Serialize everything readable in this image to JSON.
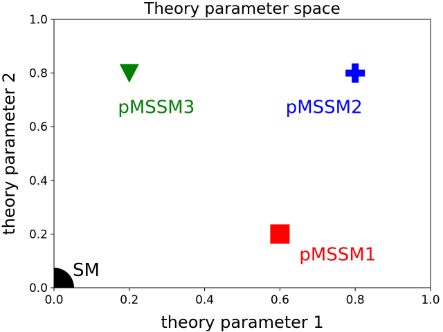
{
  "chart_data": {
    "type": "scatter",
    "title": "Theory parameter space",
    "xlabel": "theory parameter 1",
    "ylabel": "theory parameter 2",
    "xlim": [
      0.0,
      1.0
    ],
    "ylim": [
      0.0,
      1.0
    ],
    "xticks": [
      "0.0",
      "0.2",
      "0.4",
      "0.6",
      "0.8",
      "1.0"
    ],
    "yticks": [
      "0.0",
      "0.2",
      "0.4",
      "0.6",
      "0.8",
      "1.0"
    ],
    "grid": false,
    "points": [
      {
        "label": "SM",
        "x": 0.0,
        "y": 0.0,
        "marker": "circle",
        "color": "#000000"
      },
      {
        "label": "pMSSM1",
        "x": 0.6,
        "y": 0.2,
        "marker": "square",
        "color": "#ff0000"
      },
      {
        "label": "pMSSM2",
        "x": 0.8,
        "y": 0.8,
        "marker": "plus",
        "color": "#0000ff"
      },
      {
        "label": "pMSSM3",
        "x": 0.2,
        "y": 0.8,
        "marker": "triangle-down",
        "color": "#008000"
      }
    ]
  }
}
